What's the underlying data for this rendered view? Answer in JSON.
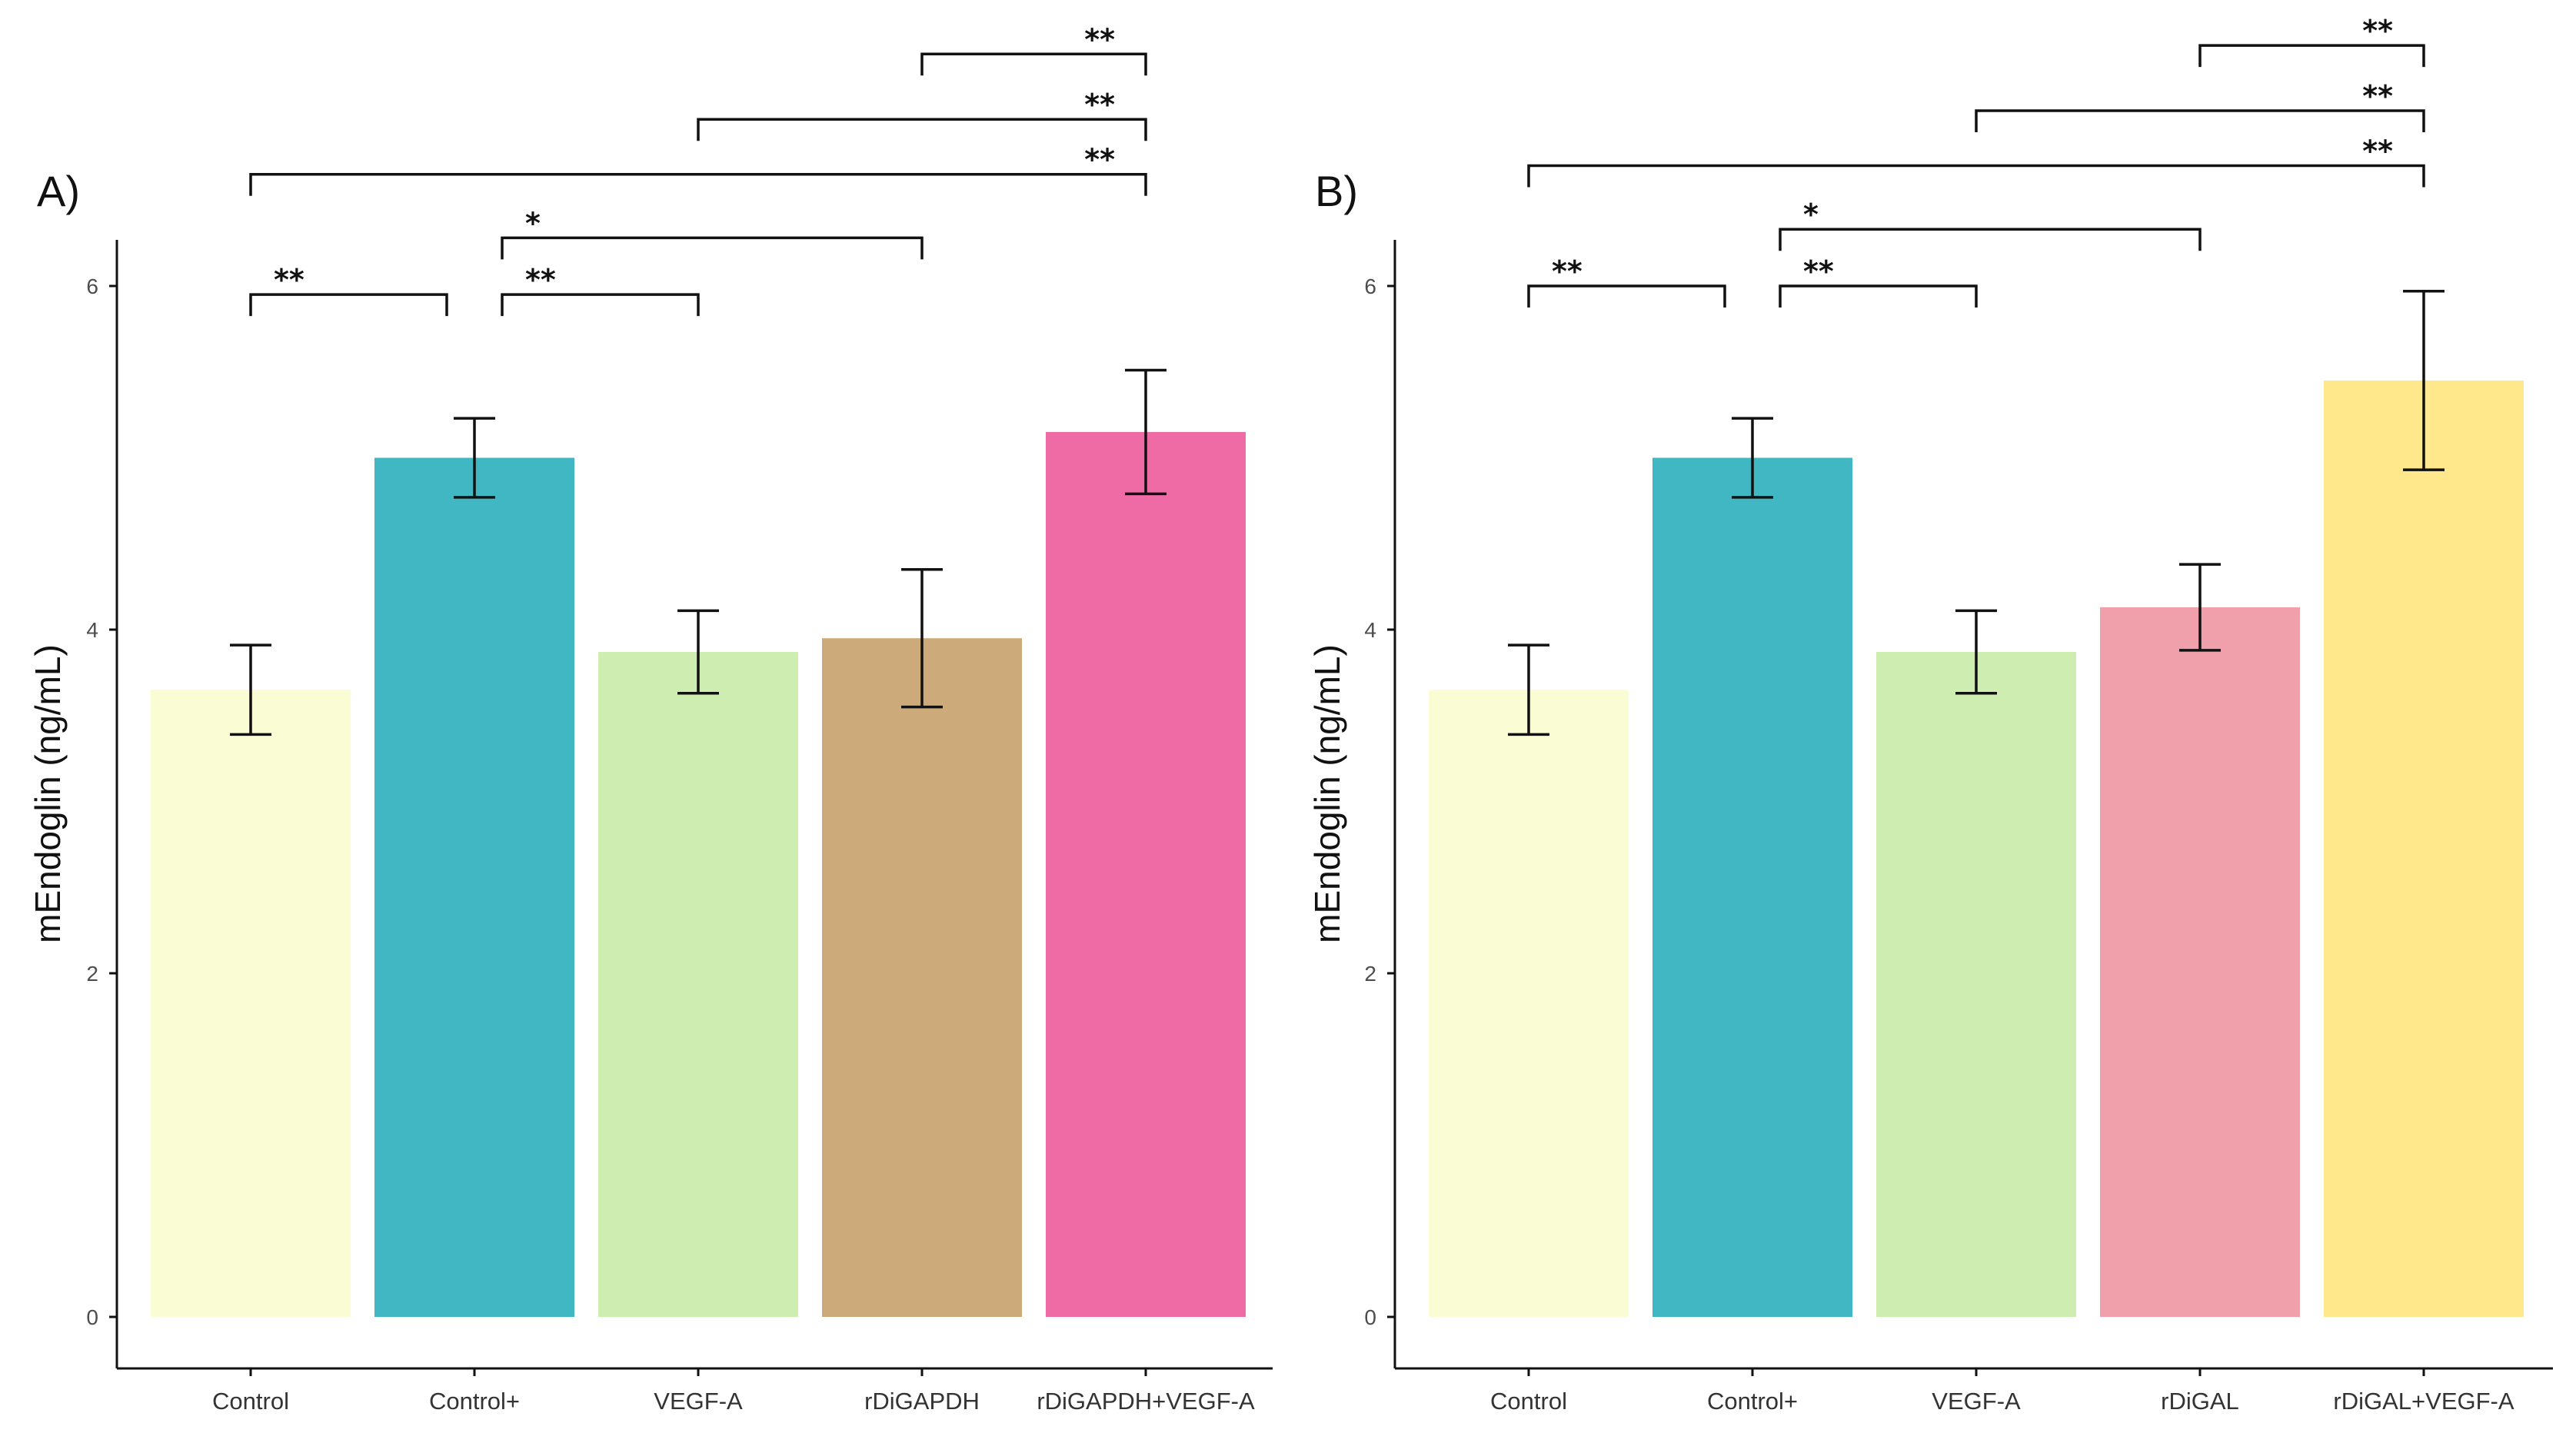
{
  "chart_data": [
    {
      "type": "bar",
      "panel_label": "A)",
      "categories": [
        "Control",
        "Control+",
        "VEGF-A",
        "rDiGAPDH",
        "rDiGAPDH+VEGF-A"
      ],
      "values": [
        3.65,
        5.0,
        3.87,
        3.95,
        5.15
      ],
      "error": [
        0.26,
        0.23,
        0.24,
        0.4,
        0.36
      ],
      "colors": [
        "#fafdd3",
        "#41b7c4",
        "#cdeeb0",
        "#cdaa7a",
        "#ef6ba6"
      ],
      "ylabel": "mEndoglin (ng/mL)",
      "ylim": [
        0,
        6.3
      ],
      "yticks": [
        0,
        2,
        4,
        6
      ],
      "comparisons": [
        {
          "from": 0,
          "to": 1,
          "y": 5.95,
          "label": "**"
        },
        {
          "from": 1,
          "to": 2,
          "y": 5.95,
          "label": "**"
        },
        {
          "from": 1,
          "to": 3,
          "y": 6.28,
          "label": "*"
        },
        {
          "from": 0,
          "to": 4,
          "y": 6.65,
          "label": "**"
        },
        {
          "from": 2,
          "to": 4,
          "y": 6.97,
          "label": "**"
        },
        {
          "from": 3,
          "to": 4,
          "y": 7.35,
          "label": "**"
        }
      ]
    },
    {
      "type": "bar",
      "panel_label": "B)",
      "categories": [
        "Control",
        "Control+",
        "VEGF-A",
        "rDiGAL",
        "rDiGAL+VEGF-A"
      ],
      "values": [
        3.65,
        5.0,
        3.87,
        4.13,
        5.45
      ],
      "error": [
        0.26,
        0.23,
        0.24,
        0.25,
        0.52
      ],
      "colors": [
        "#fafdd3",
        "#41b7c4",
        "#cdeeb0",
        "#efa0ab",
        "#ffe88c"
      ],
      "ylabel": "mEndoglin (ng/mL)",
      "ylim": [
        0,
        6.3
      ],
      "yticks": [
        0,
        2,
        4,
        6
      ],
      "comparisons": [
        {
          "from": 0,
          "to": 1,
          "y": 6.0,
          "label": "**"
        },
        {
          "from": 1,
          "to": 2,
          "y": 6.0,
          "label": "**"
        },
        {
          "from": 1,
          "to": 3,
          "y": 6.33,
          "label": "*"
        },
        {
          "from": 0,
          "to": 4,
          "y": 6.7,
          "label": "**"
        },
        {
          "from": 2,
          "to": 4,
          "y": 7.02,
          "label": "**"
        },
        {
          "from": 3,
          "to": 4,
          "y": 7.4,
          "label": "**"
        }
      ]
    }
  ]
}
